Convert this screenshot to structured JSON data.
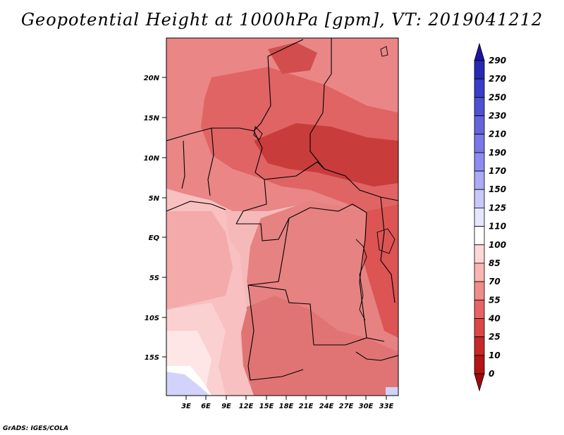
{
  "title": "Geopotential Height at 1000hPa [gpm], VT: 2019041212",
  "footer": "GrADS: IGES/COLA",
  "map": {
    "x_ticks": [
      "3E",
      "6E",
      "9E",
      "12E",
      "15E",
      "18E",
      "21E",
      "24E",
      "27E",
      "30E",
      "33E"
    ],
    "y_ticks": [
      "20N",
      "15N",
      "10N",
      "5N",
      "EQ",
      "5S",
      "10S",
      "15S"
    ]
  },
  "colorbar": {
    "levels": [
      "290",
      "270",
      "250",
      "230",
      "210",
      "190",
      "170",
      "150",
      "125",
      "110",
      "100",
      "85",
      "70",
      "55",
      "40",
      "25",
      "10",
      "0"
    ],
    "colors": [
      "#1e14a0",
      "#2828b4",
      "#3c3cc8",
      "#5050d2",
      "#6464dc",
      "#7878e6",
      "#8c8cf0",
      "#aaaaf5",
      "#c8c8fa",
      "#e6e6ff",
      "#ffffff",
      "#ffd7d7",
      "#fbb4b4",
      "#f08c8c",
      "#e66464",
      "#dc4646",
      "#c82828",
      "#b41414",
      "#a00a0a"
    ]
  }
}
